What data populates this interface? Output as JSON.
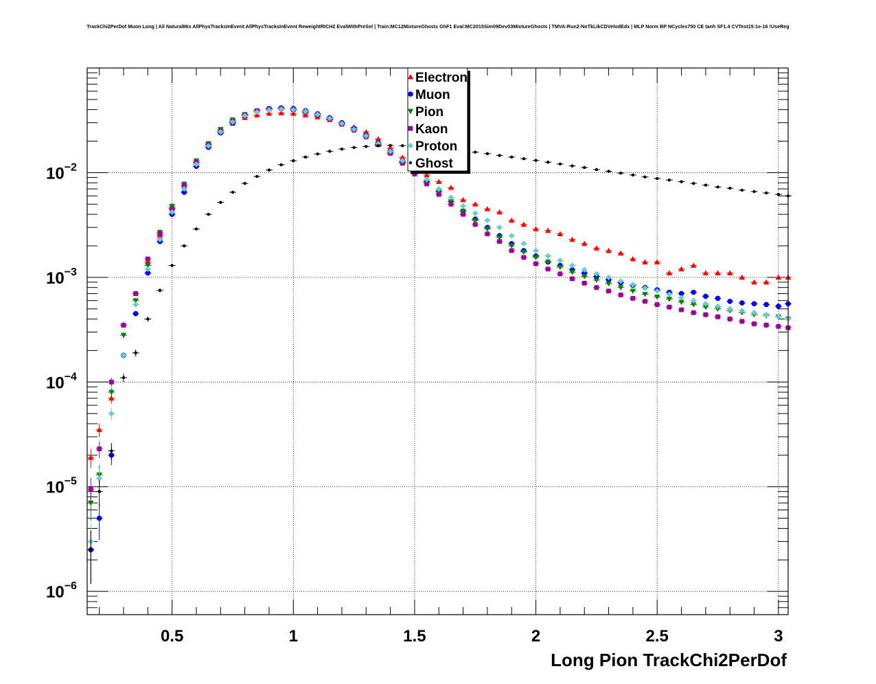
{
  "title": "TrackChi2PerDof Muon Long | All NaturalMix AllPhysTracksInEvent:AllPhysTracksInEvent ReweightRICH2 EvalWithPreSel | Train:MC12MixtureGhosts GhF1 Eval:MC2015Sim09Dev03MixtureGhosts | TMVA-Run2-NoTkLikCDVelodEdx | MLP Norm BP NCycles750 CE tanh SF1.4 CVTest15:1e-16 !UseReg",
  "chart_data": {
    "type": "scatter",
    "title": "TrackChi2PerDof Muon Long | All NaturalMix AllPhysTracksInEvent:AllPhysTracksInEvent ReweightRICH2 EvalWithPreSel | Train:MC12MixtureGhosts GhF1 Eval:MC2015Sim09Dev03MixtureGhosts | TMVA-Run2-NoTkLikCDVelodEdx | MLP Norm BP NCycles750 CE tanh SF1.4 CVTest15:1e-16 !UseReg",
    "xlabel": "Long Pion TrackChi2PerDof",
    "ylabel": "",
    "xlim": [
      0.15,
      3.04
    ],
    "ylim": [
      6e-07,
      0.1
    ],
    "yscale": "log",
    "grid": true,
    "legend_position": "top-center",
    "x_ticks": [
      {
        "value": 0.5,
        "label": "0.5"
      },
      {
        "value": 1,
        "label": "1"
      },
      {
        "value": 1.5,
        "label": "1.5"
      },
      {
        "value": 2,
        "label": "2"
      },
      {
        "value": 2.5,
        "label": "2.5"
      },
      {
        "value": 3,
        "label": "3"
      }
    ],
    "y_ticks": [
      {
        "value": 1e-06,
        "exp": "−6"
      },
      {
        "value": 1e-05,
        "exp": "−5"
      },
      {
        "value": 0.0001,
        "exp": "−4"
      },
      {
        "value": 0.001,
        "exp": "−3"
      },
      {
        "value": 0.01,
        "exp": "−2"
      }
    ],
    "series": [
      {
        "name": "Electron",
        "color": "#ff0000",
        "marker": "triangle-up",
        "x": [
          0.165,
          0.2,
          0.25,
          0.3,
          0.35,
          0.4,
          0.45,
          0.5,
          0.55,
          0.6,
          0.65,
          0.7,
          0.75,
          0.8,
          0.85,
          0.9,
          0.95,
          1.0,
          1.05,
          1.1,
          1.15,
          1.2,
          1.25,
          1.3,
          1.35,
          1.4,
          1.45,
          1.5,
          1.55,
          1.6,
          1.65,
          1.7,
          1.75,
          1.8,
          1.85,
          1.9,
          1.95,
          2.0,
          2.05,
          2.1,
          2.15,
          2.2,
          2.25,
          2.3,
          2.35,
          2.4,
          2.45,
          2.5,
          2.55,
          2.6,
          2.65,
          2.7,
          2.75,
          2.8,
          2.85,
          2.9,
          2.95,
          3.0,
          3.04
        ],
        "y": [
          1.9e-05,
          3.5e-05,
          7e-05,
          0.00035,
          0.0007,
          0.0014,
          0.0025,
          0.0046,
          0.0075,
          0.0125,
          0.0185,
          0.0245,
          0.0295,
          0.0335,
          0.0355,
          0.0368,
          0.0372,
          0.0368,
          0.0355,
          0.034,
          0.032,
          0.0298,
          0.0272,
          0.0245,
          0.021,
          0.0172,
          0.014,
          0.0112,
          0.0095,
          0.0082,
          0.0072,
          0.0055,
          0.005,
          0.0045,
          0.0042,
          0.0035,
          0.0032,
          0.0029,
          0.0028,
          0.0026,
          0.0023,
          0.0021,
          0.0019,
          0.0018,
          0.0017,
          0.0015,
          0.0014,
          0.0014,
          0.0011,
          0.0012,
          0.0013,
          0.0011,
          0.0011,
          0.0011,
          0.001,
          0.0009,
          0.0009,
          0.001,
          0.001
        ]
      },
      {
        "name": "Muon",
        "color": "#0000ff",
        "marker": "circle",
        "x": [
          0.165,
          0.2,
          0.25,
          0.3,
          0.35,
          0.4,
          0.45,
          0.5,
          0.55,
          0.6,
          0.65,
          0.7,
          0.75,
          0.8,
          0.85,
          0.9,
          0.95,
          1.0,
          1.05,
          1.1,
          1.15,
          1.2,
          1.25,
          1.3,
          1.35,
          1.4,
          1.45,
          1.5,
          1.55,
          1.6,
          1.65,
          1.7,
          1.75,
          1.8,
          1.85,
          1.9,
          1.95,
          2.0,
          2.05,
          2.1,
          2.15,
          2.2,
          2.25,
          2.3,
          2.35,
          2.4,
          2.45,
          2.5,
          2.55,
          2.6,
          2.65,
          2.7,
          2.75,
          2.8,
          2.85,
          2.9,
          2.95,
          3.0,
          3.04
        ],
        "y": [
          2.5e-06,
          5e-06,
          2e-05,
          0.00018,
          0.00045,
          0.0011,
          0.0022,
          0.004,
          0.0065,
          0.0115,
          0.0175,
          0.024,
          0.03,
          0.035,
          0.039,
          0.041,
          0.0415,
          0.041,
          0.039,
          0.0365,
          0.0335,
          0.03,
          0.0265,
          0.0228,
          0.0192,
          0.016,
          0.0128,
          0.0102,
          0.0082,
          0.0066,
          0.0053,
          0.0043,
          0.0036,
          0.003,
          0.0025,
          0.0021,
          0.0018,
          0.0016,
          0.0014,
          0.0013,
          0.00118,
          0.0011,
          0.00102,
          0.00095,
          0.00089,
          0.00084,
          0.0008,
          0.00076,
          0.00072,
          0.0007,
          0.00072,
          0.00066,
          0.00063,
          0.00059,
          0.00057,
          0.00056,
          0.00055,
          0.00053,
          0.00056
        ]
      },
      {
        "name": "Pion",
        "color": "#008000",
        "marker": "triangle-down",
        "x": [
          0.165,
          0.2,
          0.25,
          0.3,
          0.35,
          0.4,
          0.45,
          0.5,
          0.55,
          0.6,
          0.65,
          0.7,
          0.75,
          0.8,
          0.85,
          0.9,
          0.95,
          1.0,
          1.05,
          1.1,
          1.15,
          1.2,
          1.25,
          1.3,
          1.35,
          1.4,
          1.45,
          1.5,
          1.55,
          1.6,
          1.65,
          1.7,
          1.75,
          1.8,
          1.85,
          1.9,
          1.95,
          2.0,
          2.05,
          2.1,
          2.15,
          2.2,
          2.25,
          2.3,
          2.35,
          2.4,
          2.45,
          2.5,
          2.55,
          2.6,
          2.65,
          2.7,
          2.75,
          2.8,
          2.85,
          2.9,
          2.95,
          3.0,
          3.04
        ],
        "y": [
          7e-06,
          1.3e-05,
          8e-05,
          0.00028,
          0.0006,
          0.0013,
          0.0027,
          0.0048,
          0.0078,
          0.013,
          0.019,
          0.026,
          0.032,
          0.036,
          0.039,
          0.0405,
          0.041,
          0.0395,
          0.0375,
          0.0352,
          0.0322,
          0.029,
          0.0255,
          0.022,
          0.0186,
          0.0155,
          0.0125,
          0.01,
          0.0081,
          0.0066,
          0.0053,
          0.0043,
          0.0035,
          0.0029,
          0.0024,
          0.002,
          0.00175,
          0.00155,
          0.0014,
          0.00125,
          0.00112,
          0.00102,
          0.00094,
          0.00087,
          0.0008,
          0.00074,
          0.00069,
          0.00065,
          0.00062,
          0.00058,
          0.00055,
          0.00052,
          0.0005,
          0.00048,
          0.00046,
          0.00044,
          0.00043,
          0.00042,
          0.0004
        ]
      },
      {
        "name": "Kaon",
        "color": "#990099",
        "marker": "square",
        "x": [
          0.165,
          0.2,
          0.25,
          0.3,
          0.35,
          0.4,
          0.45,
          0.5,
          0.55,
          0.6,
          0.65,
          0.7,
          0.75,
          0.8,
          0.85,
          0.9,
          0.95,
          1.0,
          1.05,
          1.1,
          1.15,
          1.2,
          1.25,
          1.3,
          1.35,
          1.4,
          1.45,
          1.5,
          1.55,
          1.6,
          1.65,
          1.7,
          1.75,
          1.8,
          1.85,
          1.9,
          1.95,
          2.0,
          2.05,
          2.1,
          2.15,
          2.2,
          2.25,
          2.3,
          2.35,
          2.4,
          2.45,
          2.5,
          2.55,
          2.6,
          2.65,
          2.7,
          2.75,
          2.8,
          2.85,
          2.9,
          2.95,
          3.0,
          3.04
        ],
        "y": [
          9.5e-06,
          2.3e-05,
          0.0001,
          0.00035,
          0.0007,
          0.0015,
          0.0026,
          0.0045,
          0.0075,
          0.0125,
          0.0185,
          0.025,
          0.031,
          0.0355,
          0.039,
          0.0405,
          0.041,
          0.04,
          0.038,
          0.0355,
          0.0325,
          0.029,
          0.0255,
          0.022,
          0.0185,
          0.0153,
          0.0123,
          0.0097,
          0.0078,
          0.0062,
          0.005,
          0.004,
          0.0032,
          0.0026,
          0.0022,
          0.0018,
          0.00155,
          0.00135,
          0.0012,
          0.00108,
          0.00097,
          0.00088,
          0.0008,
          0.00074,
          0.00068,
          0.00063,
          0.00059,
          0.00055,
          0.00052,
          0.00049,
          0.00046,
          0.00044,
          0.00042,
          0.0004,
          0.00038,
          0.00036,
          0.00035,
          0.00034,
          0.00033
        ]
      },
      {
        "name": "Proton",
        "color": "#66cccc",
        "marker": "diamond",
        "x": [
          0.165,
          0.2,
          0.25,
          0.3,
          0.35,
          0.4,
          0.45,
          0.5,
          0.55,
          0.6,
          0.65,
          0.7,
          0.75,
          0.8,
          0.85,
          0.9,
          0.95,
          1.0,
          1.05,
          1.1,
          1.15,
          1.2,
          1.25,
          1.3,
          1.35,
          1.4,
          1.45,
          1.5,
          1.55,
          1.6,
          1.65,
          1.7,
          1.75,
          1.8,
          1.85,
          1.9,
          1.95,
          2.0,
          2.05,
          2.1,
          2.15,
          2.2,
          2.25,
          2.3,
          2.35,
          2.4,
          2.45,
          2.5,
          2.55,
          2.6,
          2.65,
          2.7,
          2.75,
          2.8,
          2.85,
          2.9,
          2.95,
          3.0,
          3.04
        ],
        "y": [
          3e-06,
          1.2e-05,
          5e-05,
          0.00018,
          0.00055,
          0.0012,
          0.0023,
          0.0042,
          0.007,
          0.012,
          0.018,
          0.0245,
          0.0305,
          0.035,
          0.038,
          0.0398,
          0.0405,
          0.04,
          0.0385,
          0.036,
          0.033,
          0.0295,
          0.026,
          0.0225,
          0.019,
          0.016,
          0.013,
          0.0105,
          0.0086,
          0.007,
          0.0058,
          0.0048,
          0.0041,
          0.0035,
          0.003,
          0.0025,
          0.0021,
          0.0018,
          0.0016,
          0.00145,
          0.0013,
          0.00118,
          0.00108,
          0.001,
          0.00092,
          0.00085,
          0.00079,
          0.00074,
          0.00069,
          0.00064,
          0.0006,
          0.00056,
          0.00053,
          0.0005,
          0.00048,
          0.00046,
          0.00044,
          0.00042,
          0.0004
        ]
      },
      {
        "name": "Ghost",
        "color": "#000000",
        "marker": "circle-small",
        "x": [
          0.165,
          0.2,
          0.25,
          0.3,
          0.35,
          0.4,
          0.45,
          0.5,
          0.55,
          0.6,
          0.65,
          0.7,
          0.75,
          0.8,
          0.85,
          0.9,
          0.95,
          1.0,
          1.05,
          1.1,
          1.15,
          1.2,
          1.25,
          1.3,
          1.35,
          1.4,
          1.45,
          1.5,
          1.55,
          1.6,
          1.65,
          1.7,
          1.75,
          1.8,
          1.85,
          1.9,
          1.95,
          2.0,
          2.05,
          2.1,
          2.15,
          2.2,
          2.25,
          2.3,
          2.35,
          2.4,
          2.45,
          2.5,
          2.55,
          2.6,
          2.65,
          2.7,
          2.75,
          2.8,
          2.85,
          2.9,
          2.95,
          3.0,
          3.04
        ],
        "y": [
          2.5e-06,
          9e-06,
          2.2e-05,
          0.00011,
          0.00019,
          0.0004,
          0.00075,
          0.0013,
          0.002,
          0.0029,
          0.004,
          0.0052,
          0.0065,
          0.0079,
          0.0092,
          0.0106,
          0.0119,
          0.013,
          0.0141,
          0.0151,
          0.016,
          0.0168,
          0.0174,
          0.0178,
          0.0181,
          0.0182,
          0.0181,
          0.0179,
          0.0175,
          0.0171,
          0.0167,
          0.0162,
          0.0157,
          0.0152,
          0.0146,
          0.0141,
          0.0136,
          0.0131,
          0.0126,
          0.0121,
          0.0116,
          0.0112,
          0.0107,
          0.0103,
          0.0099,
          0.0095,
          0.0091,
          0.0088,
          0.0085,
          0.0082,
          0.0079,
          0.0076,
          0.0073,
          0.0071,
          0.0068,
          0.0066,
          0.0064,
          0.0062,
          0.006
        ]
      }
    ]
  }
}
